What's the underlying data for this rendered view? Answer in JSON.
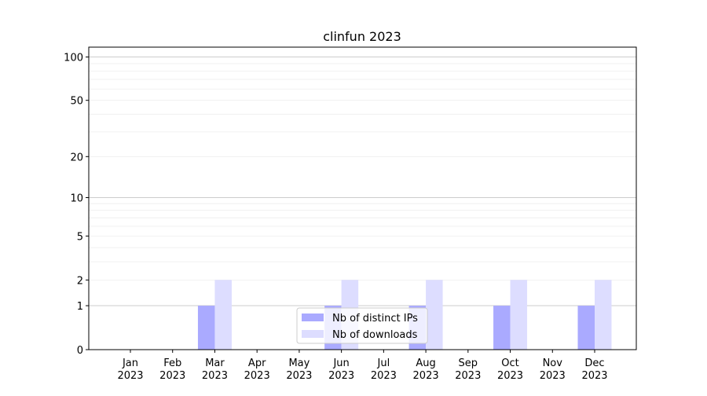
{
  "chart_data": {
    "type": "bar",
    "title": "clinfun 2023",
    "xlabel": "",
    "ylabel": "",
    "y_scale": "symlog (log of 1+y)",
    "ylim": [
      0,
      117
    ],
    "y_ticks": [
      0,
      1,
      2,
      5,
      10,
      20,
      50,
      100
    ],
    "y_tick_labels": [
      "0",
      "1",
      "2",
      "5",
      "10",
      "20",
      "50",
      "100"
    ],
    "grid": "horizontal, major and minor",
    "legend_position": "lower center",
    "categories": [
      [
        "Jan",
        "2023"
      ],
      [
        "Feb",
        "2023"
      ],
      [
        "Mar",
        "2023"
      ],
      [
        "Apr",
        "2023"
      ],
      [
        "May",
        "2023"
      ],
      [
        "Jun",
        "2023"
      ],
      [
        "Jul",
        "2023"
      ],
      [
        "Aug",
        "2023"
      ],
      [
        "Sep",
        "2023"
      ],
      [
        "Oct",
        "2023"
      ],
      [
        "Nov",
        "2023"
      ],
      [
        "Dec",
        "2023"
      ]
    ],
    "series": [
      {
        "name": "Nb of distinct IPs",
        "color": "#aaaaff",
        "values": [
          0,
          0,
          1,
          0,
          0,
          1,
          0,
          1,
          0,
          1,
          0,
          1
        ]
      },
      {
        "name": "Nb of downloads",
        "color": "#ddddff",
        "values": [
          0,
          0,
          2,
          0,
          0,
          2,
          0,
          2,
          0,
          2,
          0,
          2
        ]
      }
    ]
  }
}
